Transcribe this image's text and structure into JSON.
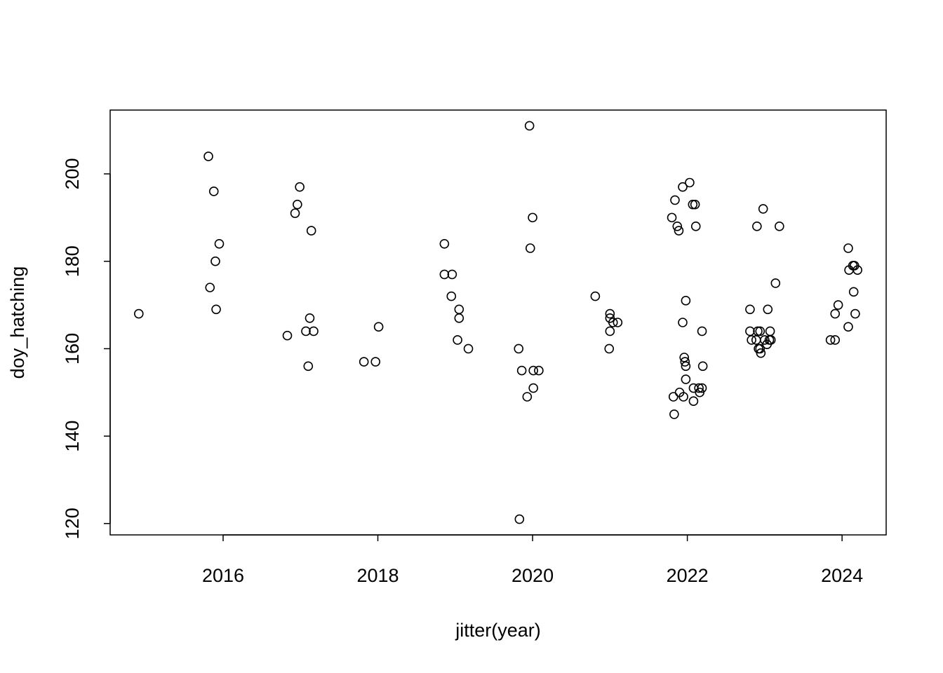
{
  "chart_data": {
    "type": "scatter",
    "x_label": "jitter(year)",
    "y_label": "doy_hatching",
    "xlim": [
      2014.54,
      2024.57
    ],
    "ylim": [
      117.4,
      214.6
    ],
    "xticks": [
      2016,
      2018,
      2020,
      2022,
      2024
    ],
    "yticks": [
      120,
      140,
      160,
      180,
      200
    ],
    "color": "#000000",
    "series": [
      {
        "x": [
          2014.91,
          2015.81,
          2015.88,
          2015.95,
          2015.9,
          2015.83,
          2015.91,
          2016.83,
          2016.99,
          2016.96,
          2016.93,
          2017.14,
          2017.12,
          2017.07,
          2017.17,
          2017.1,
          2017.82,
          2017.97,
          2018.01,
          2018.86,
          2018.86,
          2018.96,
          2018.95,
          2019.05,
          2019.05,
          2019.03,
          2019.17,
          2019.96,
          2020.0,
          2019.97,
          2019.82,
          2019.86,
          2020.01,
          2020.08,
          2020.01,
          2019.93,
          2019.83,
          2020.81,
          2021.0,
          2021.0,
          2021.04,
          2021.1,
          2021.0,
          2020.99,
          2021.8,
          2021.84,
          2021.94,
          2022.03,
          2022.07,
          2022.1,
          2021.87,
          2021.89,
          2022.11,
          2021.98,
          2021.94,
          2022.19,
          2021.96,
          2021.97,
          2021.98,
          2022.2,
          2021.98,
          2022.08,
          2022.15,
          2022.19,
          2021.9,
          2022.16,
          2021.82,
          2021.95,
          2022.08,
          2021.83,
          2022.98,
          2022.9,
          2023.19,
          2023.14,
          2022.81,
          2023.04,
          2022.81,
          2022.91,
          2022.94,
          2023.07,
          2022.83,
          2022.89,
          2023.0,
          2023.06,
          2023.08,
          2023.03,
          2022.92,
          2022.94,
          2022.95,
          2024.08,
          2024.09,
          2024.14,
          2024.16,
          2024.2,
          2024.15,
          2023.95,
          2023.91,
          2024.17,
          2024.08,
          2023.85,
          2023.91
        ],
        "values": [
          168,
          204,
          196,
          184,
          180,
          174,
          169,
          163,
          197,
          193,
          191,
          187,
          167,
          164,
          164,
          156,
          157,
          157,
          165,
          184,
          177,
          177,
          172,
          169,
          167,
          162,
          160,
          211,
          190,
          183,
          160,
          155,
          155,
          155,
          151,
          149,
          121,
          172,
          168,
          167,
          166,
          166,
          164,
          160,
          190,
          194,
          197,
          198,
          193,
          193,
          188,
          187,
          188,
          171,
          166,
          164,
          158,
          157,
          156,
          156,
          153,
          151,
          151,
          151,
          150,
          150,
          149,
          149,
          148,
          145,
          192,
          188,
          188,
          175,
          169,
          169,
          164,
          164,
          164,
          164,
          162,
          162,
          162,
          162,
          162,
          161,
          160,
          160,
          159,
          183,
          178,
          179,
          179,
          178,
          173,
          170,
          168,
          168,
          165,
          162,
          162
        ]
      }
    ]
  }
}
